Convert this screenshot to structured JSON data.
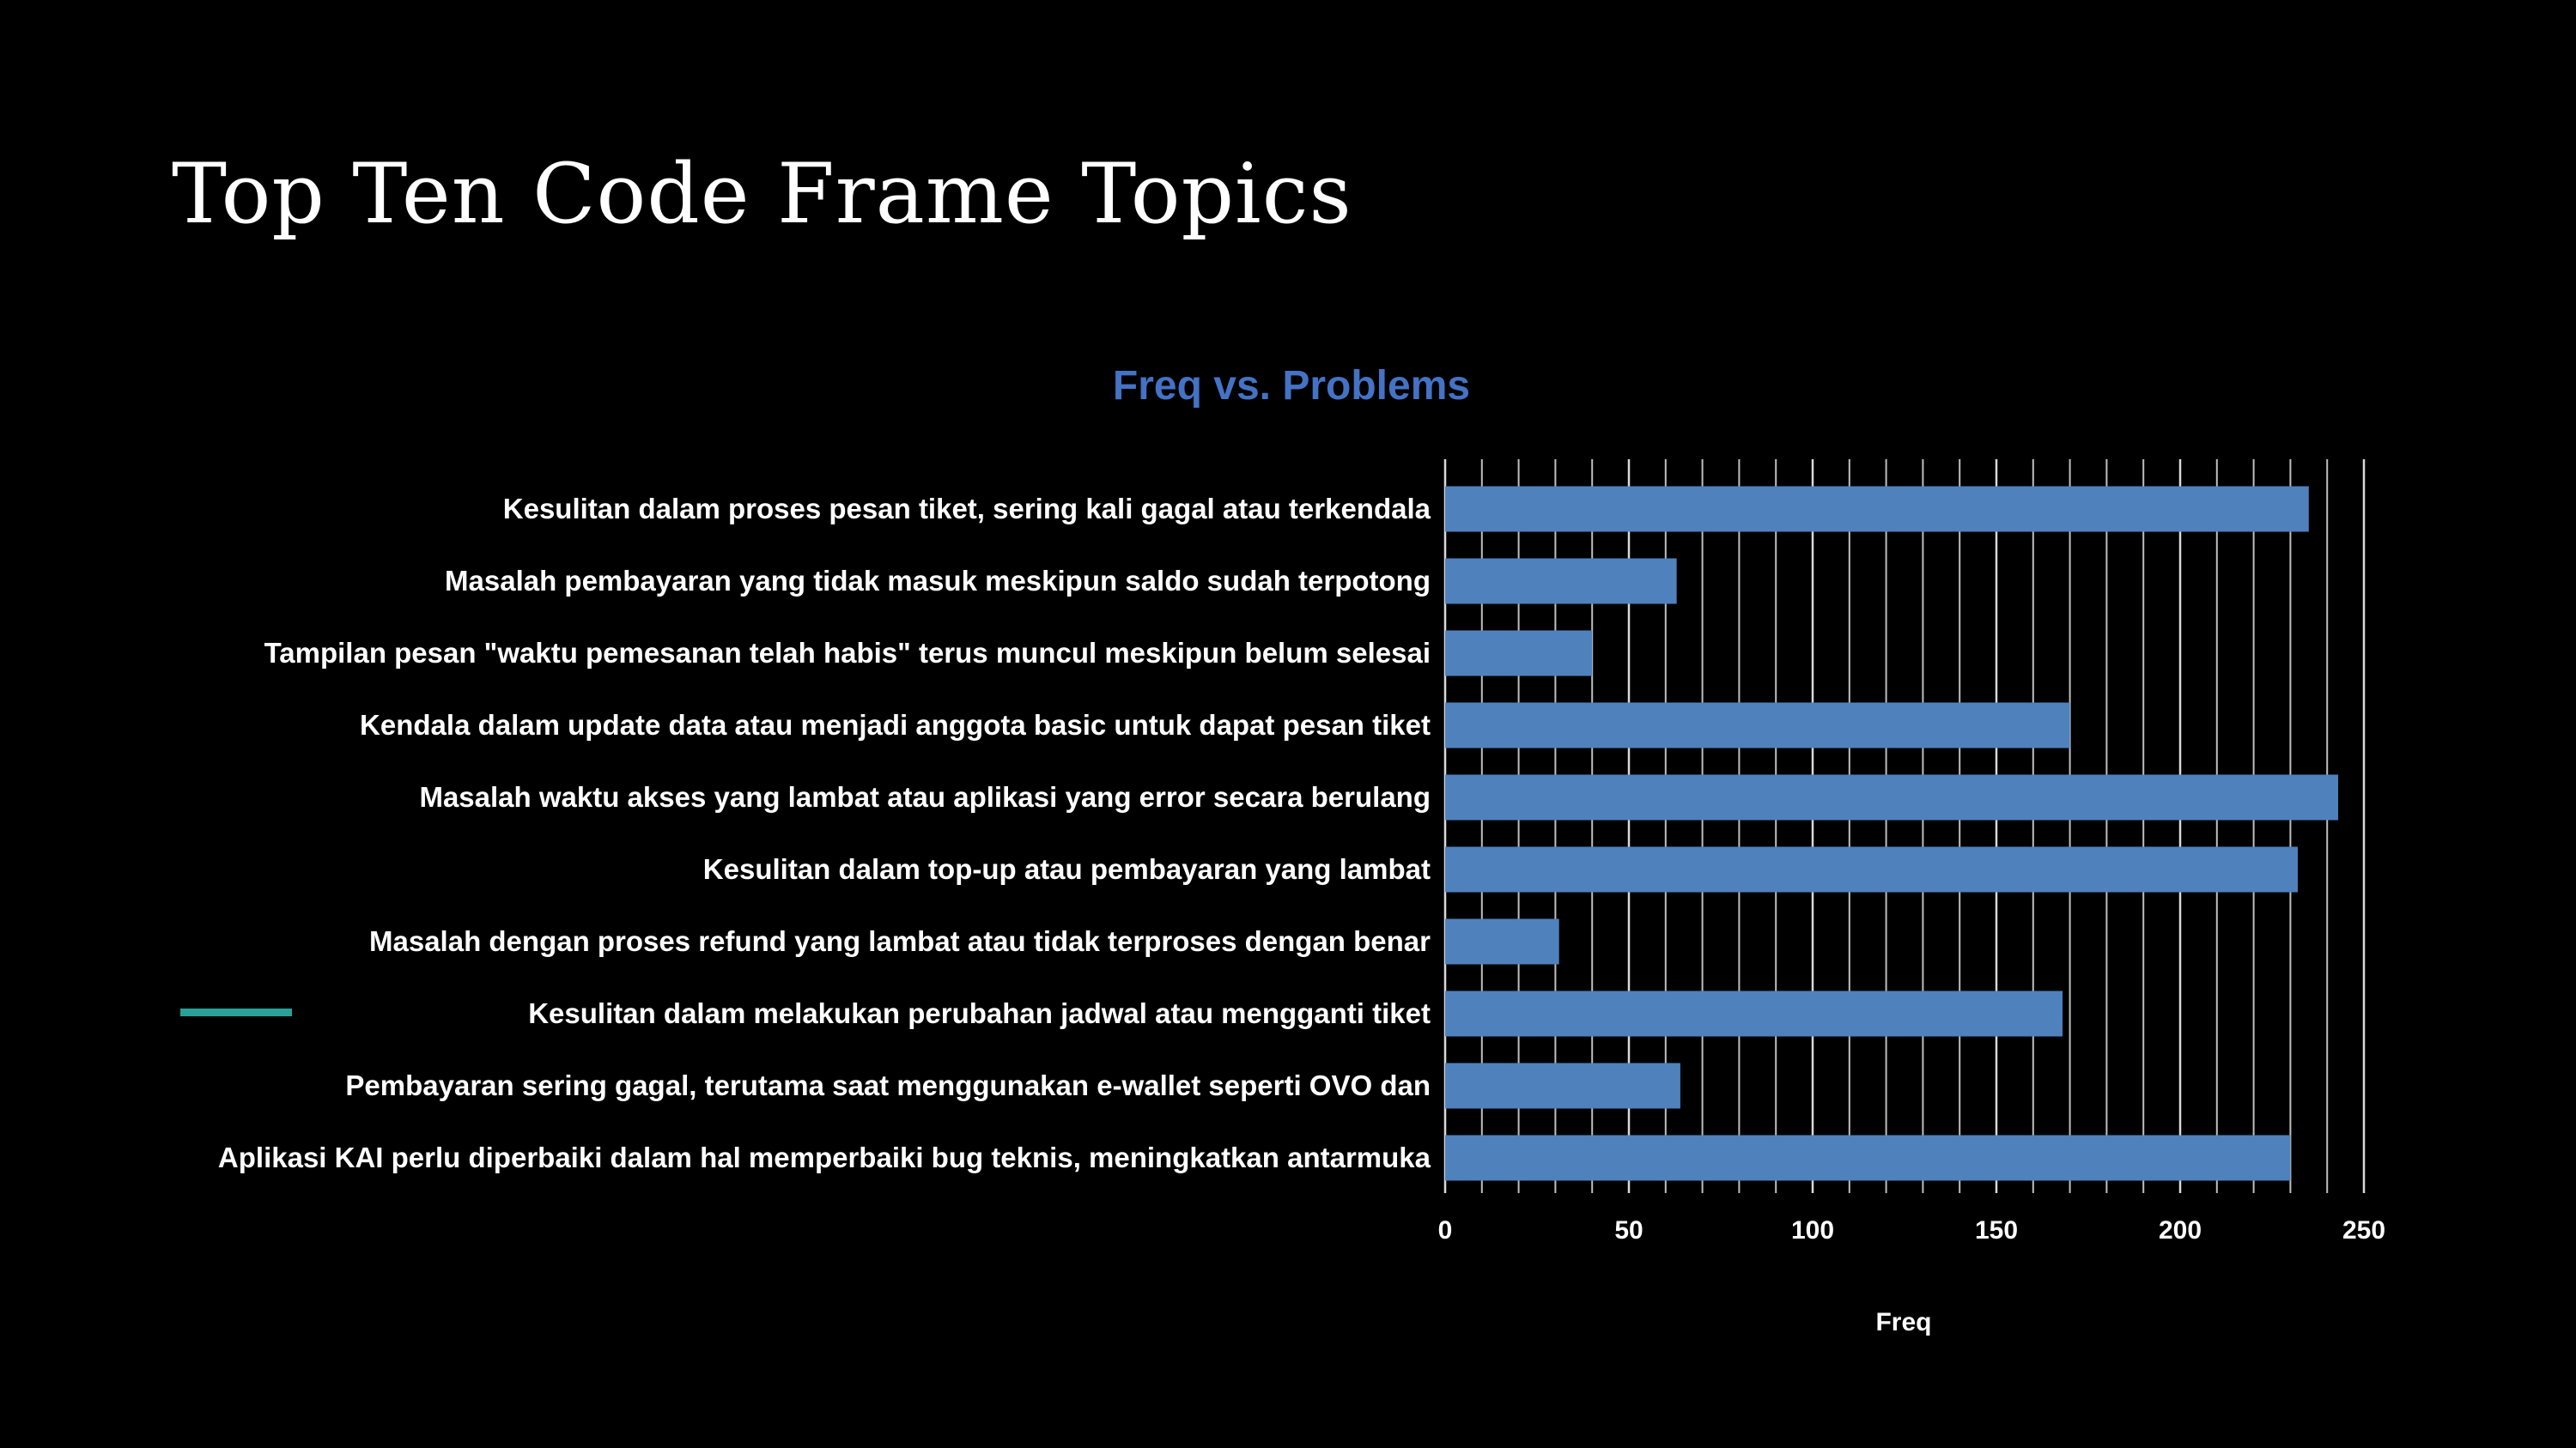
{
  "slide": {
    "title": "Top Ten Code Frame Topics",
    "background": "#000000",
    "accent_color": "#2aa198"
  },
  "chart_data": {
    "type": "bar",
    "orientation": "horizontal",
    "title": "Freq vs. Problems",
    "title_color": "#4472c4",
    "xlabel": "Freq",
    "ylabel": "",
    "xlim": [
      0,
      250
    ],
    "x_ticks": [
      0,
      50,
      100,
      150,
      200,
      250
    ],
    "minor_grid_step": 10,
    "grid": true,
    "legend": "none",
    "bar_color": "#4f81bd",
    "categories": [
      "Kesulitan dalam proses pesan tiket, sering kali gagal atau terkendala",
      "Masalah pembayaran yang tidak masuk meskipun saldo sudah terpotong",
      "Tampilan pesan \"waktu pemesanan telah habis\" terus muncul meskipun belum selesai",
      "Kendala dalam update data atau menjadi anggota basic untuk dapat pesan tiket",
      "Masalah waktu akses yang lambat atau aplikasi yang error secara berulang",
      "Kesulitan dalam top-up atau pembayaran yang lambat",
      "Masalah dengan proses refund yang lambat atau tidak terproses dengan benar",
      "Kesulitan dalam melakukan perubahan jadwal atau mengganti tiket",
      "Pembayaran sering gagal, terutama saat menggunakan e-wallet seperti OVO dan",
      "Aplikasi KAI perlu diperbaiki dalam hal memperbaiki bug teknis, meningkatkan antarmuka"
    ],
    "values": [
      235,
      63,
      40,
      170,
      243,
      232,
      31,
      168,
      64,
      230
    ]
  }
}
